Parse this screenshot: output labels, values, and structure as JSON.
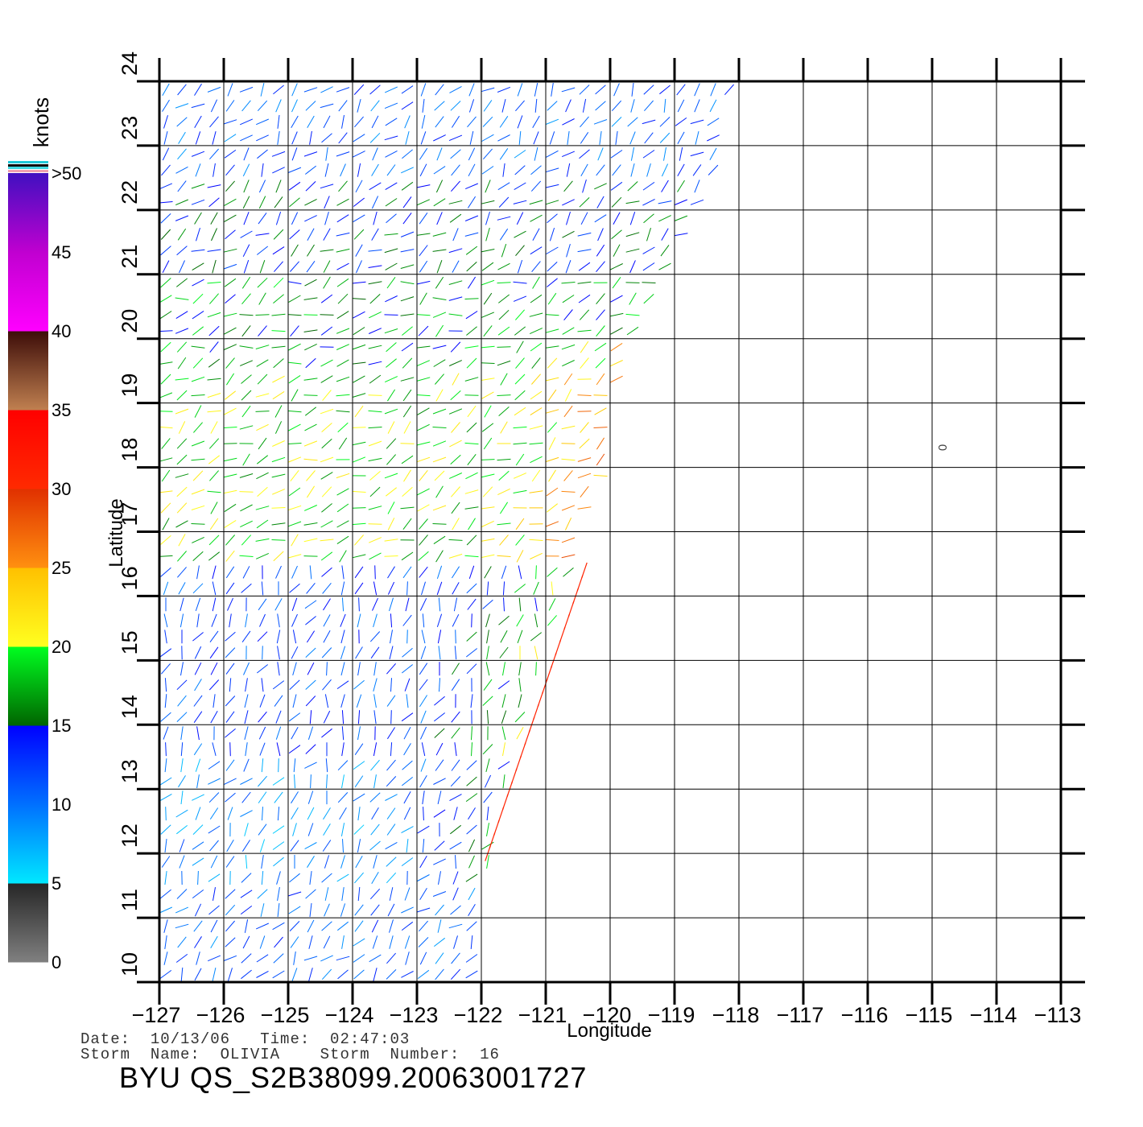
{
  "chart_data": {
    "type": "scatter",
    "subtype": "wind-vector-field",
    "xlabel": "Longitude",
    "ylabel": "Latitude",
    "xlim": [
      -127,
      -113
    ],
    "ylim": [
      10,
      24
    ],
    "xticks": [
      -127,
      -126,
      -125,
      -124,
      -123,
      -122,
      -121,
      -120,
      -119,
      -118,
      -117,
      -116,
      -115,
      -114,
      -113
    ],
    "yticks": [
      10,
      11,
      12,
      13,
      14,
      15,
      16,
      17,
      18,
      19,
      20,
      21,
      22,
      23,
      24
    ],
    "grid": true,
    "colorbar": {
      "title": "knots",
      "labels": [
        "0",
        "5",
        "10",
        "15",
        "20",
        "25",
        "30",
        "35",
        "40",
        "45",
        ">50"
      ],
      "bands": [
        {
          "from": 0,
          "to": 5,
          "colors": [
            "#808080",
            "#262626"
          ]
        },
        {
          "from": 5,
          "to": 10,
          "colors": [
            "#00e8ff",
            "#0070ff"
          ]
        },
        {
          "from": 10,
          "to": 15,
          "colors": [
            "#0070ff",
            "#0000ff"
          ]
        },
        {
          "from": 15,
          "to": 20,
          "colors": [
            "#006400",
            "#00ff20"
          ]
        },
        {
          "from": 20,
          "to": 25,
          "colors": [
            "#ffff20",
            "#ffc000"
          ]
        },
        {
          "from": 25,
          "to": 30,
          "colors": [
            "#ff9010",
            "#e03000"
          ]
        },
        {
          "from": 30,
          "to": 35,
          "colors": [
            "#ff2a00",
            "#ff0000"
          ]
        },
        {
          "from": 35,
          "to": 40,
          "colors": [
            "#c08050",
            "#3c0c08"
          ]
        },
        {
          "from": 40,
          "to": 45,
          "colors": [
            "#ff00ff",
            "#c000d0"
          ]
        },
        {
          "from": 45,
          "to": 50,
          "colors": [
            "#c000d0",
            "#4010c0"
          ]
        }
      ]
    },
    "swath_edge": [
      [
        -118.1,
        24
      ],
      [
        -118.4,
        22.5
      ],
      [
        -119.1,
        21
      ],
      [
        -119.6,
        20
      ],
      [
        -120.0,
        19
      ],
      [
        -120.0,
        18
      ],
      [
        -120.5,
        17
      ],
      [
        -120.6,
        16.5
      ],
      [
        -121.1,
        15
      ],
      [
        -121.3,
        14
      ],
      [
        -121.8,
        12.5
      ],
      [
        -122.0,
        11
      ],
      [
        -122.1,
        10.5
      ]
    ],
    "wind_regions": [
      {
        "lat": [
          10,
          11.5
        ],
        "speed": 11,
        "dir": 50
      },
      {
        "lat": [
          11.5,
          13.5
        ],
        "speed": 9,
        "dir": 60
      },
      {
        "lat": [
          13.5,
          16.5
        ],
        "speed": 12,
        "dir": 70
      },
      {
        "lat": [
          16.5,
          19.5
        ],
        "speed": 19,
        "dir": 30
      },
      {
        "lat": [
          19.5,
          21
        ],
        "speed": 17,
        "dir": 25
      },
      {
        "lat": [
          21,
          22.5
        ],
        "speed": 14,
        "dir": 40
      },
      {
        "lat": [
          22.5,
          24
        ],
        "speed": 11,
        "dir": 50
      }
    ],
    "max_wind_band": {
      "start": [
        -121.9,
        12
      ],
      "end": [
        -120.4,
        16.4
      ],
      "speed": 31
    },
    "annotation": "0"
  },
  "info": {
    "date_line": "Date:  10/13/06   Time:  02:47:03",
    "storm_line": "Storm  Name:  OLIVIA    Storm  Number:  16",
    "file_label": "BYU  QS_S2B38099.20063001727"
  },
  "colors": {
    "axis": "#000000",
    "grid": "#000000",
    "background": "#ffffff"
  }
}
